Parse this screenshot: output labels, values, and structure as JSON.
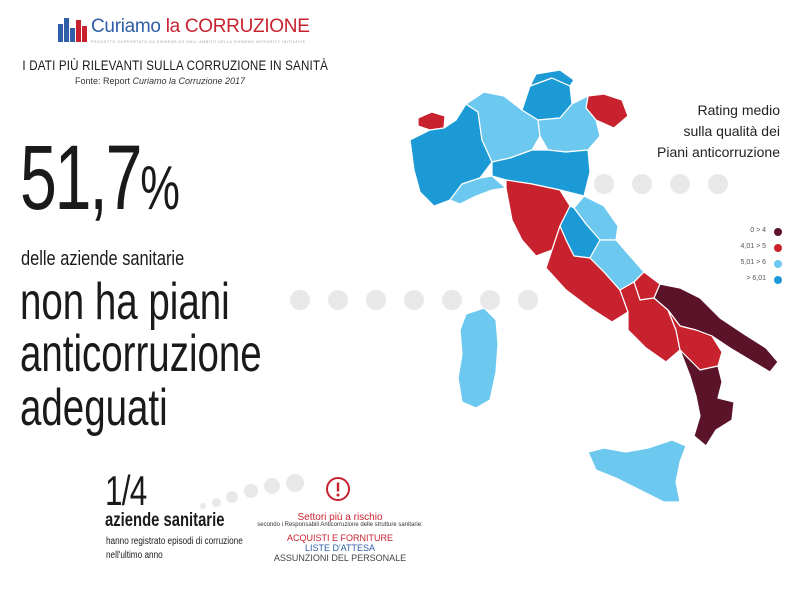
{
  "brand": {
    "name_part1": "Curiamo",
    "name_part2": "la CORRUZIONE",
    "tagline": "PROGETTO SUPPORTATO DA SIEMENS AG NELL'AMBITO DELLA SIEMENS INTEGRITY INITIATIVE",
    "colors": {
      "blue": "#2f5fa6",
      "red": "#c8222f"
    }
  },
  "header": {
    "headline": "I DATI PIÙ RILEVANTI SULLA CORRUZIONE IN SANITÀ",
    "source_prefix": "Fonte: Report ",
    "source_title": "Curiamo la Corruzione 2017"
  },
  "main_stat": {
    "value": "51,7",
    "unit": "%",
    "subtitle": "delle aziende sanitarie",
    "line1": "non ha piani",
    "line2": "anticorruzione",
    "line3": "adeguati"
  },
  "secondary_stat": {
    "value": "1/4",
    "label": "aziende sanitarie",
    "desc_line1": "hanno registrato episodi di corruzione",
    "desc_line2": "nell'ultimo anno"
  },
  "risk": {
    "icon": "exclamation-circle-icon",
    "title": "Settori più a rischio",
    "subtitle": "secondo i Responsabili Anticorruzione delle strutture sanitarie:",
    "items": [
      "ACQUISTI E FORNITURE",
      "LISTE D'ATTESA",
      "ASSUNZIONI DEL PERSONALE"
    ]
  },
  "map": {
    "title_line1": "Rating medio",
    "title_line2": "sulla qualità dei",
    "title_line3": "Piani anticorruzione",
    "legend": [
      {
        "label": "0 > 4",
        "color": "#5a1328"
      },
      {
        "label": "4,01 > 5",
        "color": "#c8222f"
      },
      {
        "label": "5,01 > 6",
        "color": "#6cc8ef"
      },
      {
        "label": "> 6,01",
        "color": "#1b9ad6"
      }
    ]
  }
}
